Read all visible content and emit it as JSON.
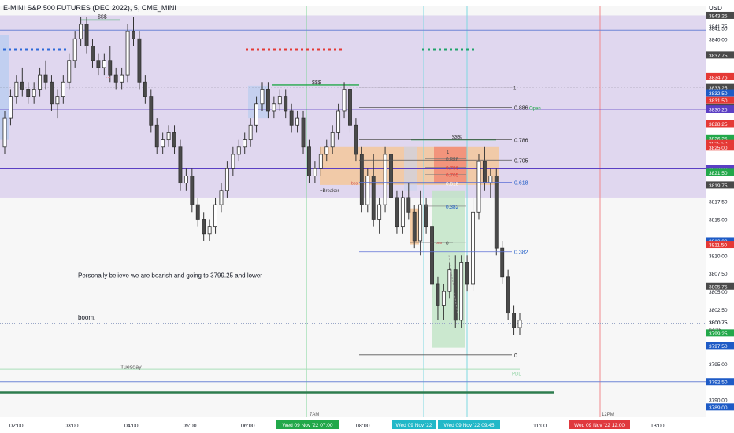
{
  "header": {
    "symbol_title": "E-MINI S&P 500 FUTURES (DEC 2022), 5, CME_MINI",
    "currency": "USD"
  },
  "chart_data": {
    "type": "candlestick",
    "title": "E-MINI S&P 500 FUTURES (DEC 2022), 5, CME_MINI",
    "currency": "USD",
    "ylim": [
      3788.0,
      3844.5
    ],
    "grid": false,
    "x_ticks": [
      "02:00",
      "03:00",
      "04:00",
      "05:00",
      "06:00",
      "07:00",
      "08:00",
      "11:00",
      "13:00"
    ],
    "x_minor_ticks": [
      "7AM",
      "12PM"
    ],
    "highlighted_time_labels": [
      {
        "text": "Wed 09 Nov '22  07:00",
        "color": "#22a84a"
      },
      {
        "text": "Wed 09 Nov '22",
        "color": "#22b8c8"
      },
      {
        "text": "Wed 09 Nov '22  09:45",
        "color": "#22b8c8"
      },
      {
        "text": "Wed 09 Nov '22  12:00",
        "color": "#e0393e"
      }
    ],
    "y_ticks": [
      3843.25,
      3841.75,
      3841.5,
      3840.0,
      3837.75,
      3834.75,
      3833.25,
      3832.5,
      3831.5,
      3830.5,
      3830.25,
      3828.25,
      3826.25,
      3825.5,
      3825.0,
      3822.0,
      3821.5,
      3819.75,
      3817.5,
      3815.0,
      3812.0,
      3811.5,
      3810.0,
      3807.5,
      3805.75,
      3805.0,
      3802.5,
      3800.75,
      3799.25,
      3797.5,
      3795.0,
      3792.5,
      3790.0,
      3789.0
    ],
    "y_tick_labels": [
      "3843.25",
      "3841.75",
      "3841.50",
      "3840.00",
      "3837.75",
      "3834.75",
      "3833.25",
      "3832.50",
      "3831.50",
      "3830.50",
      "3830.25",
      "3828.25",
      "3826.25",
      "3825.50",
      "3825.00",
      "3822.00",
      "3821.50",
      "3819.75",
      "3817.50",
      "3815.00",
      "3812.00",
      "3811.50",
      "3810.00",
      "3807.50",
      "3805.75",
      "3805.00",
      "3802.50",
      "3800.75",
      "3799.25",
      "3797.50",
      "3795.00",
      "3792.50",
      "3790.00",
      "3789.00"
    ],
    "price_badges": [
      {
        "price": 3843.25,
        "label": "3843.25",
        "color": "#4a4a4a"
      },
      {
        "price": 3837.75,
        "label": "3837.75",
        "color": "#4a4a4a"
      },
      {
        "price": 3834.75,
        "label": "3834.75",
        "color": "#e53935"
      },
      {
        "price": 3833.25,
        "label": "3833.25",
        "color": "#4a4a4a"
      },
      {
        "price": 3832.5,
        "label": "3832.50",
        "color": "#1e5bc6"
      },
      {
        "price": 3831.5,
        "label": "3831.50",
        "color": "#e53935"
      },
      {
        "price": 3830.5,
        "label": "3830.50",
        "color": "#4a4a4a"
      },
      {
        "price": 3830.25,
        "label": "3830.25",
        "color": "#5b3fc4"
      },
      {
        "price": 3828.25,
        "label": "3828.25",
        "color": "#e53935"
      },
      {
        "price": 3826.25,
        "label": "3826.25",
        "color": "#22a84a"
      },
      {
        "price": 3825.5,
        "label": "3825.50",
        "color": "#e53935"
      },
      {
        "price": 3825.0,
        "label": "3825.00",
        "color": "#e53935"
      },
      {
        "price": 3822.0,
        "label": "3822.00",
        "color": "#5b3fc4"
      },
      {
        "price": 3821.5,
        "label": "3821.50",
        "color": "#22a84a"
      },
      {
        "price": 3819.75,
        "label": "3819.75",
        "color": "#4a4a4a"
      },
      {
        "price": 3812.0,
        "label": "3812.00",
        "color": "#1e5bc6"
      },
      {
        "price": 3811.5,
        "label": "3811.50",
        "color": "#e53935"
      },
      {
        "price": 3805.75,
        "label": "3805.75",
        "color": "#4a4a4a"
      },
      {
        "price": 3799.25,
        "label": "3799.25",
        "color": "#22a84a"
      },
      {
        "price": 3797.5,
        "label": "3797.50",
        "color": "#1e5bc6"
      },
      {
        "price": 3792.5,
        "label": "3792.50",
        "color": "#1e5bc6"
      },
      {
        "price": 3789.0,
        "label": "3789.00",
        "color": "#1e5bc6"
      }
    ],
    "last_price": {
      "price": "3800.75",
      "countdown": "04:26"
    },
    "zones": [
      {
        "name": "premium-range",
        "y_top": 3843.25,
        "y_bottom": 3818.0,
        "color": "#d8ccec"
      },
      {
        "name": "breaker-block",
        "y_top": 3825.0,
        "y_bottom": 3819.75,
        "color": "#f3c9a0"
      }
    ],
    "candles": [
      [
        3825,
        3830,
        3824,
        3829
      ],
      [
        3829,
        3833,
        3828,
        3832
      ],
      [
        3832,
        3835,
        3831,
        3834
      ],
      [
        3834,
        3836,
        3832,
        3833
      ],
      [
        3833,
        3834,
        3831,
        3832
      ],
      [
        3832,
        3834,
        3831,
        3833
      ],
      [
        3833,
        3836,
        3832,
        3835
      ],
      [
        3835,
        3837,
        3833,
        3834
      ],
      [
        3834,
        3835,
        3830,
        3831
      ],
      [
        3831,
        3833,
        3829,
        3832
      ],
      [
        3832,
        3835,
        3831,
        3834
      ],
      [
        3834,
        3838,
        3833,
        3837
      ],
      [
        3837,
        3841,
        3836,
        3840
      ],
      [
        3840,
        3843,
        3839,
        3842
      ],
      [
        3842,
        3843,
        3838,
        3839
      ],
      [
        3839,
        3840,
        3836,
        3837
      ],
      [
        3837,
        3838,
        3835,
        3836
      ],
      [
        3836,
        3838,
        3835,
        3837
      ],
      [
        3837,
        3839,
        3834,
        3835
      ],
      [
        3835,
        3836,
        3833,
        3834
      ],
      [
        3834,
        3836,
        3833,
        3835
      ],
      [
        3835,
        3842,
        3834,
        3841
      ],
      [
        3841,
        3843,
        3839,
        3840
      ],
      [
        3840,
        3841,
        3833,
        3834
      ],
      [
        3834,
        3835,
        3831,
        3832
      ],
      [
        3832,
        3833,
        3827,
        3828
      ],
      [
        3828,
        3829,
        3824,
        3825
      ],
      [
        3825,
        3827,
        3824,
        3826
      ],
      [
        3826,
        3828,
        3825,
        3827
      ],
      [
        3827,
        3828,
        3824,
        3825
      ],
      [
        3825,
        3826,
        3819,
        3820
      ],
      [
        3820,
        3822,
        3819,
        3821
      ],
      [
        3821,
        3822,
        3816,
        3817
      ],
      [
        3817,
        3818,
        3814,
        3815
      ],
      [
        3815,
        3816,
        3812,
        3813
      ],
      [
        3813,
        3815,
        3812,
        3814
      ],
      [
        3814,
        3818,
        3813,
        3817
      ],
      [
        3817,
        3820,
        3816,
        3819
      ],
      [
        3819,
        3823,
        3818,
        3822
      ],
      [
        3822,
        3825,
        3821,
        3824
      ],
      [
        3824,
        3826,
        3823,
        3825
      ],
      [
        3825,
        3827,
        3824,
        3826
      ],
      [
        3826,
        3829,
        3825,
        3828
      ],
      [
        3828,
        3832,
        3827,
        3831
      ],
      [
        3831,
        3834,
        3830,
        3833
      ],
      [
        3833,
        3834,
        3829,
        3830
      ],
      [
        3830,
        3832,
        3829,
        3831
      ],
      [
        3831,
        3833,
        3830,
        3832
      ],
      [
        3832,
        3833,
        3829,
        3830
      ],
      [
        3830,
        3831,
        3827,
        3828
      ],
      [
        3828,
        3830,
        3827,
        3829
      ],
      [
        3829,
        3830,
        3824,
        3825
      ],
      [
        3825,
        3826,
        3820,
        3821
      ],
      [
        3821,
        3823,
        3820,
        3822
      ],
      [
        3822,
        3825,
        3821,
        3824
      ],
      [
        3824,
        3826,
        3823,
        3825
      ],
      [
        3825,
        3828,
        3824,
        3827
      ],
      [
        3827,
        3831,
        3826,
        3830
      ],
      [
        3830,
        3834,
        3829,
        3833
      ],
      [
        3833,
        3834,
        3827,
        3828
      ],
      [
        3828,
        3829,
        3823,
        3824
      ],
      [
        3824,
        3825,
        3816,
        3817
      ],
      [
        3817,
        3822,
        3816,
        3821
      ],
      [
        3821,
        3824,
        3814,
        3815
      ],
      [
        3815,
        3818,
        3813,
        3817
      ],
      [
        3817,
        3825,
        3816,
        3824
      ],
      [
        3824,
        3825,
        3817,
        3818
      ],
      [
        3818,
        3819,
        3813,
        3814
      ],
      [
        3814,
        3819,
        3813,
        3818
      ],
      [
        3818,
        3820,
        3815,
        3816
      ],
      [
        3816,
        3817,
        3811,
        3812
      ],
      [
        3812,
        3819,
        3810,
        3817
      ],
      [
        3817,
        3818,
        3813,
        3814
      ],
      [
        3814,
        3815,
        3804,
        3806
      ],
      [
        3806,
        3807,
        3801,
        3803
      ],
      [
        3803,
        3806,
        3801,
        3805
      ],
      [
        3805,
        3809,
        3804,
        3808
      ],
      [
        3808,
        3810,
        3800,
        3801
      ],
      [
        3801,
        3810,
        3800,
        3809
      ],
      [
        3809,
        3810,
        3805,
        3806
      ],
      [
        3806,
        3818,
        3805,
        3816
      ],
      [
        3816,
        3824,
        3815,
        3823
      ],
      [
        3823,
        3825,
        3819,
        3820
      ],
      [
        3820,
        3822,
        3818,
        3821
      ],
      [
        3821,
        3822,
        3810,
        3811
      ],
      [
        3811,
        3812,
        3806,
        3807
      ],
      [
        3807,
        3808,
        3801,
        3802
      ],
      [
        3802,
        3803,
        3799,
        3800
      ],
      [
        3800,
        3802,
        3799,
        3801
      ]
    ],
    "levels": [
      {
        "name": "equal-highs-top",
        "label": "$$$",
        "price": 3842.6,
        "color": "#22a84a"
      },
      {
        "name": "equal-highs-mid",
        "label": "$$$",
        "price": 3833.6,
        "color": "#22a84a"
      },
      {
        "name": "equal-highs-low",
        "label": "$$$",
        "price": 3826.0,
        "color": "#22a84a"
      },
      {
        "name": "dashed-high",
        "price": 3833.3,
        "color": "#444444"
      },
      {
        "name": "purple-top",
        "price": 3830.25,
        "color": "#5b3fc4"
      },
      {
        "name": "purple-low",
        "price": 3822.0,
        "color": "#5b3fc4"
      },
      {
        "name": "bottom-green",
        "price": 3791.0,
        "color": "#22a84a"
      }
    ],
    "fib_upper": [
      {
        "label": "0.886",
        "price": 3830.5
      },
      {
        "label": "0.786",
        "price": 3826.0
      },
      {
        "label": "0.705",
        "price": 3823.2
      },
      {
        "label": "0.618",
        "price": 3820.1
      },
      {
        "label": "0.382",
        "price": 3810.5
      },
      {
        "label": "0",
        "price": 3796.2
      }
    ],
    "fib_inner": [
      {
        "label": "0.886",
        "price": 3823.4,
        "color": "#555555"
      },
      {
        "label": "0.786",
        "price": 3822.2,
        "color": "#e53935"
      },
      {
        "label": "0.705",
        "price": 3821.2,
        "color": "#e53935"
      },
      {
        "label": "0.618",
        "price": 3820.0,
        "color": "#ffffff"
      },
      {
        "label": "0.382",
        "price": 3816.8,
        "color": "#1e5bc6"
      },
      {
        "label": "0",
        "price": 3811.8,
        "color": "#444444"
      }
    ],
    "annotations": {
      "comment_line1": "Personally believe we are bearish and going to 3799.25 and lower",
      "comment_line2": "boom.",
      "breaker_label": "+Breaker",
      "open_label": "Open",
      "day_label": "Tuesday",
      "pdl_label": "PDL",
      "bos_label": "bos",
      "bos_label_2": "bos",
      "fib_marker": "1",
      "fib_marker_2": "1"
    }
  }
}
